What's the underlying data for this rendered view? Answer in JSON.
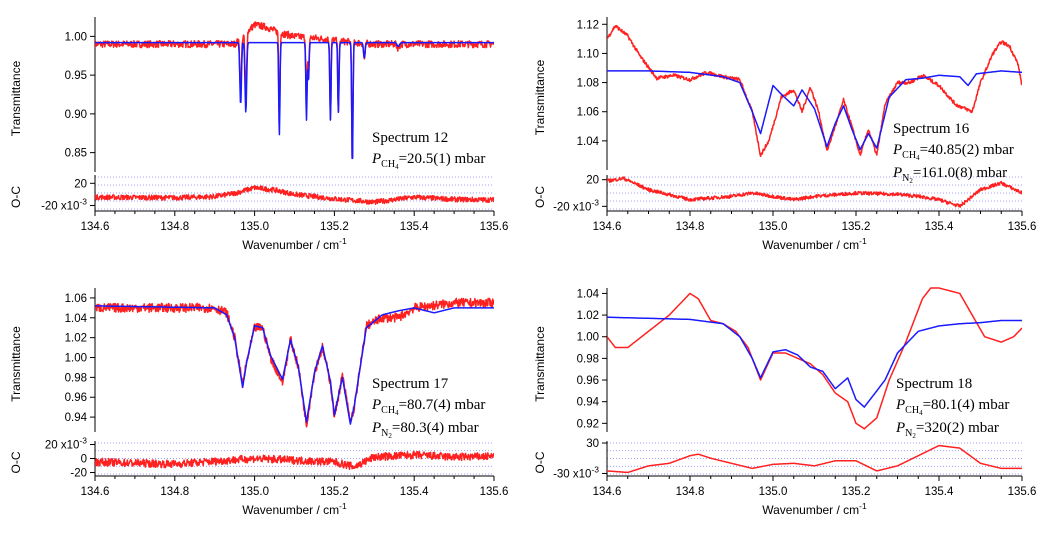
{
  "chart_data": [
    {
      "type": "line",
      "panel": "top-left",
      "ylabel": "Transmittance",
      "residual_label": "O-C",
      "xlabel": "Wavenumber / cm",
      "xlabel_sup": "-1",
      "xlim": [
        134.6,
        135.6
      ],
      "ylim": [
        0.825,
        1.025
      ],
      "residual_ylim": [
        -0.03,
        0.035
      ],
      "x_ticks": [
        "134.6",
        "134.8",
        "135.0",
        "135.2",
        "135.4",
        "135.6"
      ],
      "y_ticks": [
        {
          "v": 1.0,
          "label": "1.00"
        },
        {
          "v": 0.95,
          "label": "0.95"
        },
        {
          "v": 0.9,
          "label": "0.90"
        },
        {
          "v": 0.85,
          "label": "0.85"
        }
      ],
      "residual_ticks": [
        {
          "v": 0.02,
          "label": "20"
        },
        {
          "v": -0.02,
          "label": "-20 x10"
        }
      ],
      "residual_exponent": "-3",
      "annotation": {
        "spectrum": "Spectrum 12",
        "p_ch4": "=20.5(1) mbar"
      },
      "series": [
        {
          "name": "measured",
          "color": "#ff2020",
          "noise": 0.0045,
          "x": [
            134.6,
            134.95,
            134.97,
            135.0,
            135.03,
            135.06,
            135.1,
            135.15,
            135.2,
            135.25,
            135.3,
            135.35,
            135.4,
            135.5,
            135.6
          ],
          "y": [
            0.99,
            0.99,
            1.0,
            1.015,
            1.012,
            1.005,
            1.0,
            0.998,
            0.995,
            0.992,
            0.99,
            0.99,
            0.99,
            0.99,
            0.99
          ],
          "peaks": [
            [
              134.965,
              0.07,
              0.002
            ],
            [
              134.978,
              0.08,
              0.002
            ],
            [
              135.062,
              0.11,
              0.0015
            ],
            [
              135.13,
              0.09,
              0.0015
            ],
            [
              135.135,
              0.05,
              0.0015
            ],
            [
              135.19,
              0.1,
              0.0015
            ],
            [
              135.21,
              0.09,
              0.0015
            ],
            [
              135.245,
              0.16,
              0.0015
            ],
            [
              135.275,
              0.02,
              0.002
            ],
            [
              135.36,
              0.005,
              0.003
            ]
          ]
        },
        {
          "name": "fit",
          "color": "#1a1aff",
          "x": [
            134.6,
            135.6
          ],
          "y": [
            0.992,
            0.992
          ],
          "peaks": [
            [
              134.965,
              0.08,
              0.002
            ],
            [
              134.978,
              0.09,
              0.002
            ],
            [
              135.062,
              0.12,
              0.0015
            ],
            [
              135.13,
              0.1,
              0.0015
            ],
            [
              135.135,
              0.05,
              0.0015
            ],
            [
              135.19,
              0.1,
              0.0015
            ],
            [
              135.21,
              0.09,
              0.0015
            ],
            [
              135.245,
              0.16,
              0.0015
            ],
            [
              135.275,
              0.02,
              0.002
            ],
            [
              135.36,
              0.005,
              0.003
            ]
          ]
        },
        {
          "name": "O-C",
          "color": "#ff2020",
          "noise": 0.0045,
          "x": [
            134.6,
            134.8,
            134.9,
            134.95,
            135.0,
            135.05,
            135.1,
            135.2,
            135.3,
            135.4,
            135.5,
            135.6
          ],
          "y": [
            -0.005,
            -0.006,
            -0.004,
            0.002,
            0.012,
            0.008,
            0.0,
            -0.008,
            -0.014,
            -0.005,
            -0.009,
            -0.01
          ]
        }
      ]
    },
    {
      "type": "line",
      "panel": "top-right",
      "ylabel": "Transmittance",
      "residual_label": "O-C",
      "xlabel": "Wavenumber / cm",
      "xlabel_sup": "-1",
      "xlim": [
        134.6,
        135.6
      ],
      "ylim": [
        1.02,
        1.125
      ],
      "residual_ylim": [
        -0.027,
        0.027
      ],
      "x_ticks": [
        "134.6",
        "134.8",
        "135.0",
        "135.2",
        "135.4",
        "135.6"
      ],
      "y_ticks": [
        {
          "v": 1.12,
          "label": "1.12"
        },
        {
          "v": 1.1,
          "label": "1.10"
        },
        {
          "v": 1.08,
          "label": "1.08"
        },
        {
          "v": 1.06,
          "label": "1.06"
        },
        {
          "v": 1.04,
          "label": "1.04"
        }
      ],
      "residual_ticks": [
        {
          "v": 0.02,
          "label": "20"
        },
        {
          "v": -0.02,
          "label": "-20 x10"
        }
      ],
      "residual_exponent": "-3",
      "annotation": {
        "spectrum": "Spectrum 16",
        "p_ch4": "=40.85(2) mbar",
        "p_n2": "=161.0(8) mbar"
      },
      "series": [
        {
          "name": "measured",
          "color": "#ff2020",
          "noise": 0.0012,
          "x": [
            134.6,
            134.62,
            134.65,
            134.68,
            134.72,
            134.76,
            134.8,
            134.84,
            134.88,
            134.92,
            134.95,
            134.97,
            134.99,
            135.02,
            135.05,
            135.07,
            135.09,
            135.11,
            135.13,
            135.15,
            135.17,
            135.19,
            135.21,
            135.23,
            135.25,
            135.27,
            135.3,
            135.33,
            135.36,
            135.4,
            135.44,
            135.48,
            135.5,
            135.53,
            135.55,
            135.57,
            135.59,
            135.6
          ],
          "y": [
            1.11,
            1.119,
            1.112,
            1.098,
            1.083,
            1.085,
            1.082,
            1.087,
            1.084,
            1.082,
            1.06,
            1.03,
            1.04,
            1.07,
            1.075,
            1.06,
            1.077,
            1.06,
            1.033,
            1.05,
            1.068,
            1.05,
            1.03,
            1.048,
            1.03,
            1.065,
            1.08,
            1.08,
            1.085,
            1.078,
            1.065,
            1.06,
            1.08,
            1.1,
            1.108,
            1.105,
            1.093,
            1.078
          ]
        },
        {
          "name": "fit",
          "color": "#1a1aff",
          "x": [
            134.6,
            134.7,
            134.8,
            134.88,
            134.92,
            134.95,
            134.97,
            135.0,
            135.02,
            135.05,
            135.07,
            135.1,
            135.13,
            135.15,
            135.17,
            135.19,
            135.21,
            135.23,
            135.25,
            135.28,
            135.32,
            135.36,
            135.4,
            135.45,
            135.47,
            135.49,
            135.55,
            135.6
          ],
          "y": [
            1.088,
            1.088,
            1.087,
            1.084,
            1.08,
            1.06,
            1.045,
            1.078,
            1.072,
            1.064,
            1.075,
            1.062,
            1.036,
            1.052,
            1.064,
            1.048,
            1.034,
            1.045,
            1.035,
            1.07,
            1.082,
            1.083,
            1.085,
            1.084,
            1.078,
            1.086,
            1.088,
            1.087
          ]
        },
        {
          "name": "O-C",
          "color": "#ff2020",
          "noise": 0.0025,
          "x": [
            134.6,
            134.64,
            134.7,
            134.8,
            134.9,
            134.95,
            135.0,
            135.05,
            135.1,
            135.2,
            135.3,
            135.35,
            135.4,
            135.45,
            135.5,
            135.55,
            135.6
          ],
          "y": [
            0.018,
            0.022,
            0.005,
            -0.01,
            -0.005,
            0.0,
            -0.005,
            -0.01,
            -0.005,
            0.0,
            -0.002,
            -0.005,
            -0.01,
            -0.02,
            0.005,
            0.015,
            0.0
          ]
        }
      ]
    },
    {
      "type": "line",
      "panel": "bottom-left",
      "ylabel": "Transmittance",
      "residual_label": "O-C",
      "xlabel": "Wavenumber / cm",
      "xlabel_sup": "-1",
      "xlim": [
        134.6,
        135.6
      ],
      "ylim": [
        0.925,
        1.07
      ],
      "residual_ylim": [
        -0.025,
        0.025
      ],
      "x_ticks": [
        "134.6",
        "134.8",
        "135.0",
        "135.2",
        "135.4",
        "135.6"
      ],
      "y_ticks": [
        {
          "v": 1.06,
          "label": "1.06"
        },
        {
          "v": 1.04,
          "label": "1.04"
        },
        {
          "v": 1.02,
          "label": "1.02"
        },
        {
          "v": 1.0,
          "label": "1.00"
        },
        {
          "v": 0.98,
          "label": "0.98"
        },
        {
          "v": 0.96,
          "label": "0.96"
        },
        {
          "v": 0.94,
          "label": "0.94"
        }
      ],
      "residual_ticks": [
        {
          "v": 0.02,
          "label": "20 x10"
        },
        {
          "v": 0.0,
          "label": "0"
        },
        {
          "v": -0.02,
          "label": "-20"
        }
      ],
      "residual_exponent": "-3",
      "annotation": {
        "spectrum": "Spectrum 17",
        "p_ch4": "=80.7(4) mbar",
        "p_n2": "=80.3(4) mbar"
      },
      "series": [
        {
          "name": "measured",
          "color": "#ff2020",
          "noise": 0.0045,
          "x": [
            134.6,
            134.9,
            134.93,
            134.95,
            134.97,
            134.98,
            135.0,
            135.02,
            135.04,
            135.07,
            135.09,
            135.11,
            135.13,
            135.15,
            135.17,
            135.19,
            135.2,
            135.22,
            135.24,
            135.25,
            135.28,
            135.32,
            135.36,
            135.4,
            135.5,
            135.6
          ],
          "y": [
            1.05,
            1.05,
            1.045,
            1.02,
            0.972,
            0.995,
            1.03,
            1.03,
            1.0,
            0.975,
            1.018,
            0.99,
            0.932,
            0.985,
            1.01,
            0.975,
            0.94,
            0.982,
            0.935,
            0.95,
            1.032,
            1.04,
            1.04,
            1.05,
            1.055,
            1.055
          ]
        },
        {
          "name": "fit",
          "color": "#1a1aff",
          "x": [
            134.6,
            134.9,
            134.93,
            134.95,
            134.97,
            134.98,
            135.0,
            135.02,
            135.04,
            135.07,
            135.09,
            135.11,
            135.13,
            135.15,
            135.17,
            135.19,
            135.2,
            135.22,
            135.24,
            135.25,
            135.28,
            135.32,
            135.36,
            135.4,
            135.45,
            135.5,
            135.6
          ],
          "y": [
            1.052,
            1.05,
            1.043,
            1.02,
            0.97,
            0.995,
            1.032,
            1.03,
            1.002,
            0.978,
            1.018,
            0.99,
            0.935,
            0.985,
            1.012,
            0.976,
            0.942,
            0.98,
            0.933,
            0.952,
            1.03,
            1.043,
            1.047,
            1.05,
            1.045,
            1.05,
            1.05
          ]
        },
        {
          "name": "O-C",
          "color": "#ff2020",
          "noise": 0.0055,
          "x": [
            134.6,
            134.8,
            135.0,
            135.2,
            135.25,
            135.3,
            135.4,
            135.5,
            135.6
          ],
          "y": [
            -0.005,
            -0.008,
            0.0,
            -0.005,
            -0.012,
            0.002,
            0.005,
            0.002,
            0.003
          ]
        }
      ]
    },
    {
      "type": "line",
      "panel": "bottom-right",
      "ylabel": "Transmittance",
      "residual_label": "O-C",
      "xlabel": "Wavenumber / cm",
      "xlabel_sup": "-1",
      "xlim": [
        134.6,
        135.6
      ],
      "ylim": [
        0.912,
        1.045
      ],
      "residual_ylim": [
        -0.035,
        0.034
      ],
      "x_ticks": [
        "134.6",
        "134.8",
        "135.0",
        "135.2",
        "135.4",
        "135.6"
      ],
      "y_ticks": [
        {
          "v": 1.04,
          "label": "1.04"
        },
        {
          "v": 1.02,
          "label": "1.02"
        },
        {
          "v": 1.0,
          "label": "1.00"
        },
        {
          "v": 0.98,
          "label": "0.98"
        },
        {
          "v": 0.96,
          "label": "0.96"
        },
        {
          "v": 0.94,
          "label": "0.94"
        },
        {
          "v": 0.92,
          "label": "0.92"
        }
      ],
      "residual_ticks": [
        {
          "v": 0.03,
          "label": "30"
        },
        {
          "v": -0.03,
          "label": "-30 x10"
        }
      ],
      "residual_exponent": "-3",
      "annotation": {
        "spectrum": "Spectrum 18",
        "p_ch4": "=80.1(4) mbar",
        "p_n2": "=320(2) mbar"
      },
      "series": [
        {
          "name": "measured",
          "color": "#ff2020",
          "noise": 0,
          "x": [
            134.6,
            134.62,
            134.65,
            134.7,
            134.75,
            134.8,
            134.82,
            134.85,
            134.88,
            134.91,
            134.94,
            134.97,
            135.0,
            135.03,
            135.06,
            135.09,
            135.12,
            135.15,
            135.18,
            135.2,
            135.22,
            135.25,
            135.28,
            135.32,
            135.36,
            135.38,
            135.4,
            135.45,
            135.48,
            135.51,
            135.55,
            135.58,
            135.6
          ],
          "y": [
            1.0,
            0.99,
            0.99,
            1.005,
            1.02,
            1.04,
            1.035,
            1.015,
            1.012,
            1.005,
            0.99,
            0.96,
            0.985,
            0.985,
            0.98,
            0.975,
            0.965,
            0.948,
            0.94,
            0.92,
            0.915,
            0.925,
            0.96,
            0.995,
            1.035,
            1.045,
            1.045,
            1.04,
            1.02,
            1.0,
            0.995,
            1.0,
            1.008
          ]
        },
        {
          "name": "fit",
          "color": "#1a1aff",
          "x": [
            134.6,
            134.8,
            134.88,
            134.92,
            134.95,
            134.97,
            135.0,
            135.03,
            135.06,
            135.09,
            135.12,
            135.15,
            135.18,
            135.2,
            135.22,
            135.24,
            135.27,
            135.3,
            135.35,
            135.4,
            135.45,
            135.5,
            135.55,
            135.6
          ],
          "y": [
            1.018,
            1.016,
            1.012,
            1.0,
            0.98,
            0.962,
            0.986,
            0.988,
            0.983,
            0.972,
            0.968,
            0.952,
            0.962,
            0.942,
            0.935,
            0.945,
            0.96,
            0.985,
            1.005,
            1.01,
            1.012,
            1.013,
            1.015,
            1.015
          ]
        },
        {
          "name": "O-C",
          "color": "#ff2020",
          "noise": 0,
          "x": [
            134.6,
            134.65,
            134.7,
            134.75,
            134.8,
            134.82,
            134.85,
            134.9,
            134.95,
            135.0,
            135.05,
            135.1,
            135.15,
            135.2,
            135.25,
            135.3,
            135.35,
            135.4,
            135.45,
            135.5,
            135.55,
            135.6
          ],
          "y": [
            -0.025,
            -0.028,
            -0.015,
            -0.01,
            0.005,
            0.008,
            0.0,
            -0.01,
            -0.02,
            -0.012,
            -0.01,
            -0.015,
            -0.005,
            -0.005,
            -0.025,
            -0.015,
            0.005,
            0.025,
            0.02,
            -0.01,
            -0.02,
            -0.02
          ]
        }
      ]
    }
  ]
}
